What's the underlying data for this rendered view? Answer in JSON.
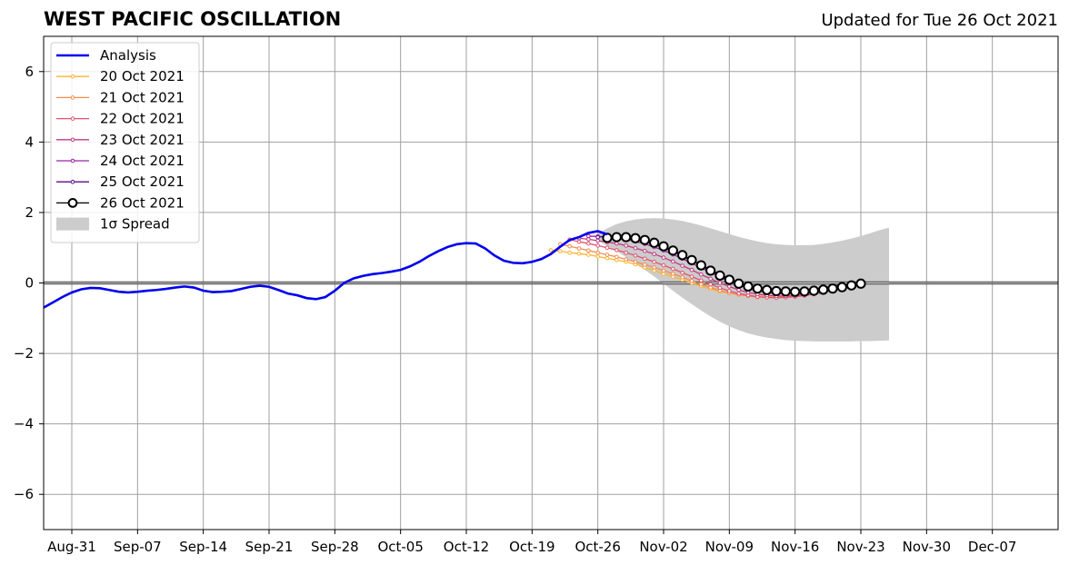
{
  "title": "WEST PACIFIC OSCILLATION",
  "subtitle": "Updated for Tue 26 Oct 2021",
  "chart_data": {
    "type": "line",
    "title": "WEST PACIFIC OSCILLATION",
    "subtitle": "Updated for Tue 26 Oct 2021",
    "xlabel": "",
    "ylabel": "",
    "x_unit": "day",
    "xlim": [
      "2021-08-28",
      "2021-12-14"
    ],
    "ylim": [
      -7,
      7
    ],
    "yticks": [
      -6,
      -4,
      -2,
      0,
      2,
      4,
      6
    ],
    "ytick_labels": [
      "−6",
      "−4",
      "−2",
      "0",
      "2",
      "4",
      "6"
    ],
    "xticks": [
      "2021-08-31",
      "2021-09-07",
      "2021-09-14",
      "2021-09-21",
      "2021-09-28",
      "2021-10-05",
      "2021-10-12",
      "2021-10-19",
      "2021-10-26",
      "2021-11-02",
      "2021-11-09",
      "2021-11-16",
      "2021-11-23",
      "2021-11-30",
      "2021-12-07"
    ],
    "xtick_labels": [
      "Aug-31",
      "Sep-07",
      "Sep-14",
      "Sep-21",
      "Sep-28",
      "Oct-05",
      "Oct-12",
      "Oct-19",
      "Oct-26",
      "Nov-02",
      "Nov-09",
      "Nov-16",
      "Nov-23",
      "Nov-30",
      "Dec-07"
    ],
    "grid": true,
    "zero_line": 0,
    "legend_position": "top-left",
    "legend": [
      "Analysis",
      "20 Oct 2021",
      "21 Oct 2021",
      "22 Oct 2021",
      "23 Oct 2021",
      "24 Oct 2021",
      "25 Oct 2021",
      "26 Oct 2021",
      "1σ Spread"
    ],
    "analysis": {
      "name": "Analysis",
      "color": "#0000ee",
      "start": "2021-08-27",
      "values": [
        -0.85,
        -0.7,
        -0.55,
        -0.4,
        -0.27,
        -0.18,
        -0.14,
        -0.15,
        -0.2,
        -0.25,
        -0.27,
        -0.25,
        -0.22,
        -0.2,
        -0.17,
        -0.13,
        -0.1,
        -0.13,
        -0.22,
        -0.26,
        -0.25,
        -0.23,
        -0.17,
        -0.11,
        -0.08,
        -0.11,
        -0.2,
        -0.3,
        -0.35,
        -0.43,
        -0.46,
        -0.4,
        -0.22,
        0.0,
        0.13,
        0.2,
        0.25,
        0.28,
        0.32,
        0.37,
        0.47,
        0.6,
        0.76,
        0.9,
        1.02,
        1.1,
        1.13,
        1.12,
        0.98,
        0.78,
        0.63,
        0.57,
        0.56,
        0.6,
        0.68,
        0.82,
        1.03,
        1.22,
        1.3,
        1.42,
        1.47,
        1.38
      ]
    },
    "forecasts": [
      {
        "name": "20 Oct 2021",
        "color": "#fdb32f",
        "start": "2021-10-21",
        "values": [
          0.93,
          0.9,
          0.86,
          0.83,
          0.8,
          0.75,
          0.7,
          0.65,
          0.6,
          0.53,
          0.44,
          0.35,
          0.26,
          0.18,
          0.09,
          0.0,
          -0.09,
          -0.17,
          -0.24,
          -0.29,
          -0.33,
          -0.36,
          -0.38,
          -0.38,
          -0.37,
          -0.36,
          -0.33
        ]
      },
      {
        "name": "21 Oct 2021",
        "color": "#f58b4c",
        "start": "2021-10-22",
        "values": [
          1.1,
          1.04,
          0.98,
          0.92,
          0.86,
          0.8,
          0.74,
          0.67,
          0.6,
          0.52,
          0.44,
          0.35,
          0.26,
          0.16,
          0.06,
          -0.04,
          -0.13,
          -0.21,
          -0.28,
          -0.33,
          -0.37,
          -0.4,
          -0.41,
          -0.41,
          -0.4,
          -0.38,
          -0.35
        ]
      },
      {
        "name": "22 Oct 2021",
        "color": "#e0546f",
        "start": "2021-10-23",
        "values": [
          1.23,
          1.17,
          1.12,
          1.06,
          1.0,
          0.93,
          0.86,
          0.78,
          0.69,
          0.6,
          0.5,
          0.4,
          0.29,
          0.18,
          0.07,
          -0.04,
          -0.14,
          -0.23,
          -0.3,
          -0.35,
          -0.39,
          -0.41,
          -0.42,
          -0.41,
          -0.39,
          -0.36,
          -0.32
        ]
      },
      {
        "name": "23 Oct 2021",
        "color": "#c13a83",
        "start": "2021-10-24",
        "values": [
          1.27,
          1.24,
          1.2,
          1.16,
          1.12,
          1.06,
          0.99,
          0.91,
          0.82,
          0.72,
          0.61,
          0.49,
          0.37,
          0.24,
          0.12,
          0.0,
          -0.1,
          -0.2,
          -0.27,
          -0.32,
          -0.35,
          -0.37,
          -0.37,
          -0.36,
          -0.34,
          -0.31,
          -0.28
        ]
      },
      {
        "name": "24 Oct 2021",
        "color": "#9a24a0",
        "start": "2021-10-25",
        "values": [
          1.33,
          1.32,
          1.3,
          1.27,
          1.23,
          1.18,
          1.11,
          1.02,
          0.92,
          0.81,
          0.69,
          0.56,
          0.43,
          0.3,
          0.17,
          0.05,
          -0.06,
          -0.15,
          -0.22,
          -0.27,
          -0.3,
          -0.31,
          -0.3,
          -0.28,
          -0.25,
          -0.21,
          -0.17
        ]
      },
      {
        "name": "25 Oct 2021",
        "color": "#5a0e8c",
        "start": "2021-10-26",
        "values": [
          1.3,
          1.33,
          1.32,
          1.29,
          1.24,
          1.18,
          1.1,
          1.0,
          0.89,
          0.77,
          0.64,
          0.51,
          0.38,
          0.25,
          0.13,
          0.02,
          -0.07,
          -0.14,
          -0.19,
          -0.22,
          -0.23,
          -0.22,
          -0.2,
          -0.17,
          -0.13,
          -0.09,
          -0.05
        ]
      },
      {
        "name": "26 Oct 2021",
        "color": "#000000",
        "start": "2021-10-27",
        "values": [
          1.28,
          1.3,
          1.3,
          1.27,
          1.22,
          1.14,
          1.04,
          0.92,
          0.79,
          0.65,
          0.5,
          0.35,
          0.21,
          0.09,
          -0.02,
          -0.1,
          -0.16,
          -0.2,
          -0.23,
          -0.24,
          -0.25,
          -0.24,
          -0.22,
          -0.19,
          -0.16,
          -0.12,
          -0.07,
          -0.02
        ]
      }
    ],
    "spread": {
      "name": "1σ Spread",
      "color": "#cccccc",
      "start": "2021-10-26",
      "upper": [
        1.4,
        1.55,
        1.67,
        1.75,
        1.8,
        1.83,
        1.84,
        1.83,
        1.8,
        1.76,
        1.7,
        1.63,
        1.55,
        1.47,
        1.39,
        1.31,
        1.24,
        1.18,
        1.13,
        1.1,
        1.08,
        1.07,
        1.07,
        1.08,
        1.11,
        1.15,
        1.2,
        1.26,
        1.33,
        1.41,
        1.5,
        1.57
      ],
      "lower": [
        1.2,
        1.05,
        0.9,
        0.73,
        0.55,
        0.37,
        0.18,
        -0.02,
        -0.22,
        -0.42,
        -0.6,
        -0.78,
        -0.95,
        -1.1,
        -1.23,
        -1.34,
        -1.43,
        -1.5,
        -1.55,
        -1.59,
        -1.62,
        -1.64,
        -1.65,
        -1.66,
        -1.66,
        -1.66,
        -1.66,
        -1.66,
        -1.65,
        -1.65,
        -1.64,
        -1.63
      ]
    }
  }
}
